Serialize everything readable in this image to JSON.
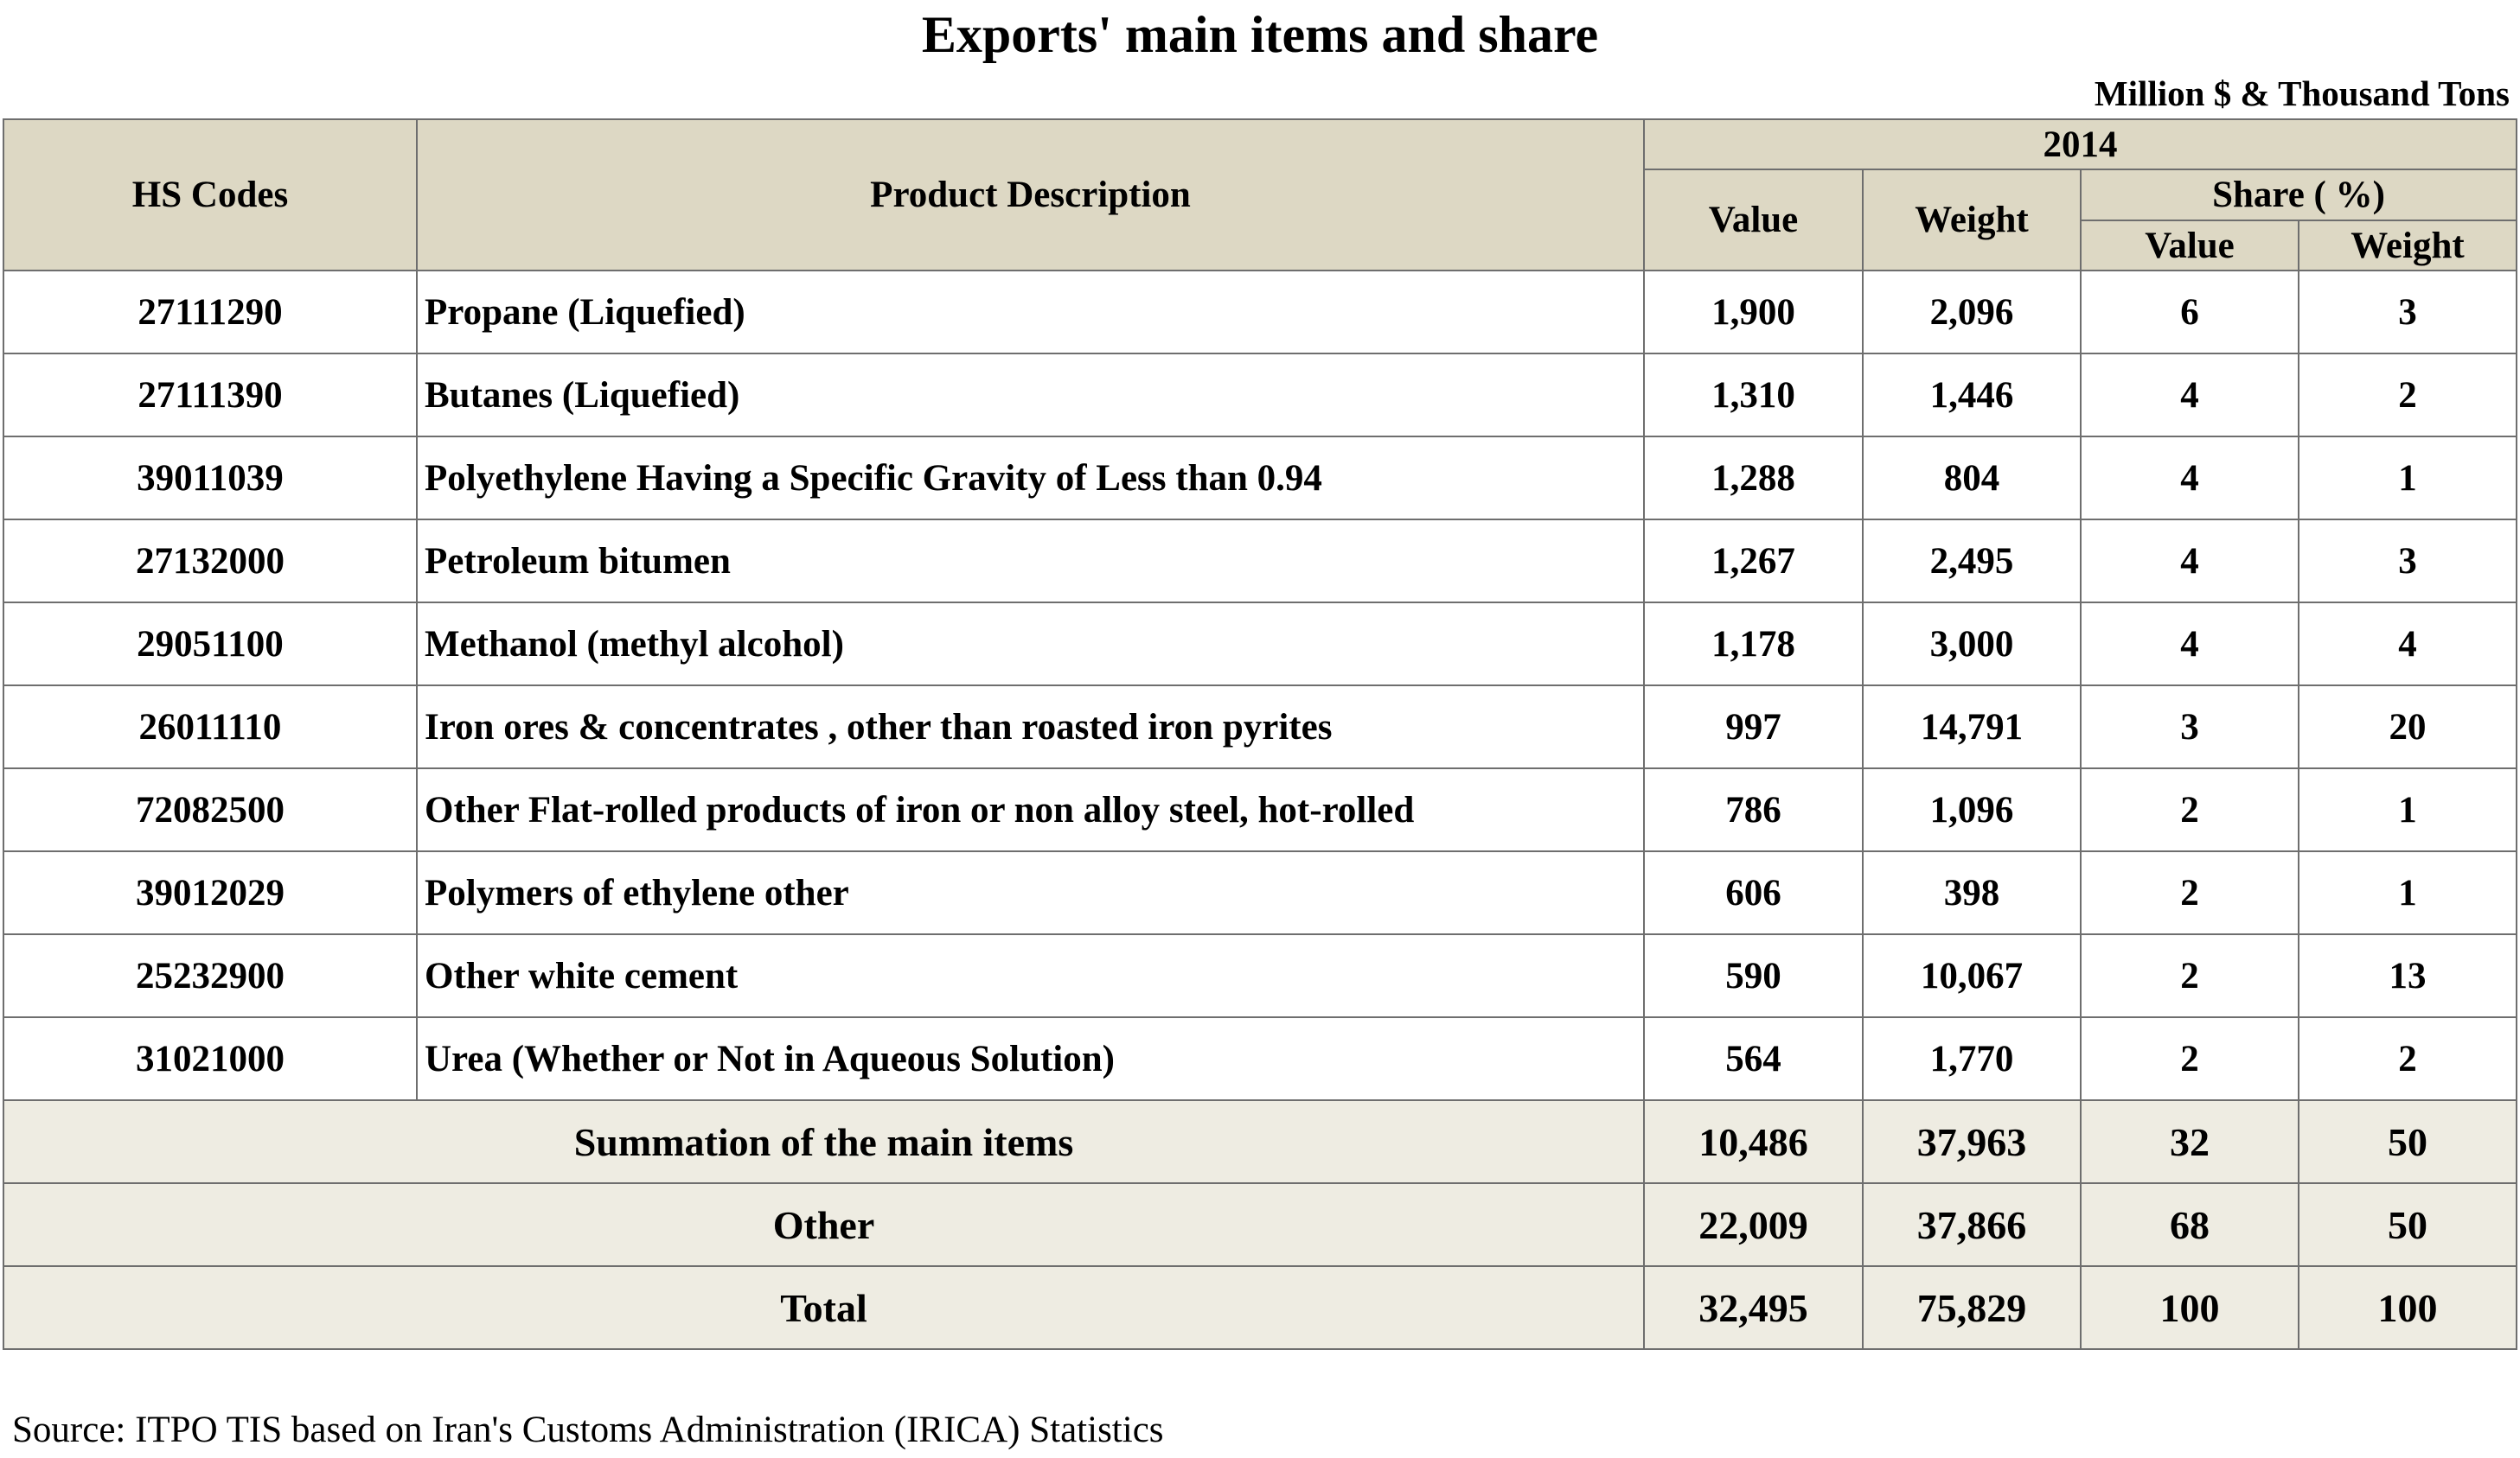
{
  "title": "Exports' main items and share",
  "units_note": "Million $ & Thousand Tons",
  "header": {
    "hs_codes": "HS Codes",
    "product_description": "Product Description",
    "year": "2014",
    "value": "Value",
    "weight": "Weight",
    "share": "Share ( %)",
    "share_value": "Value",
    "share_weight": "Weight"
  },
  "chart_data": {
    "type": "table",
    "title": "Exports' main items and share",
    "columns": [
      "HS Codes",
      "Product Description",
      "Value",
      "Weight",
      "Share Value (%)",
      "Share Weight (%)"
    ],
    "rows": [
      [
        "27111290",
        "Propane (Liquefied)",
        "1,900",
        "2,096",
        "6",
        "3"
      ],
      [
        "27111390",
        "Butanes (Liquefied)",
        "1,310",
        "1,446",
        "4",
        "2"
      ],
      [
        "39011039",
        "Polyethylene Having a Specific Gravity of Less than 0.94",
        "1,288",
        "804",
        "4",
        "1"
      ],
      [
        "27132000",
        "Petroleum bitumen",
        "1,267",
        "2,495",
        "4",
        "3"
      ],
      [
        "29051100",
        "Methanol (methyl alcohol)",
        "1,178",
        "3,000",
        "4",
        "4"
      ],
      [
        "26011110",
        "Iron ores & concentrates , other than roasted iron pyrites",
        "997",
        "14,791",
        "3",
        "20"
      ],
      [
        "72082500",
        "Other Flat-rolled products of iron or non alloy steel, hot-rolled",
        "786",
        "1,096",
        "2",
        "1"
      ],
      [
        "39012029",
        "Polymers of ethylene other",
        "606",
        "398",
        "2",
        "1"
      ],
      [
        "25232900",
        "Other white cement",
        "590",
        "10,067",
        "2",
        "13"
      ],
      [
        "31021000",
        "Urea (Whether or Not in Aqueous Solution)",
        "564",
        "1,770",
        "2",
        "2"
      ]
    ],
    "summary_rows": [
      [
        "Summation of the main items",
        "10,486",
        "37,963",
        "32",
        "50"
      ],
      [
        "Other",
        "22,009",
        "37,866",
        "68",
        "50"
      ],
      [
        "Total",
        "32,495",
        "75,829",
        "100",
        "100"
      ]
    ]
  },
  "source": "Source: ITPO TIS based on Iran's Customs Administration (IRICA) Statistics"
}
